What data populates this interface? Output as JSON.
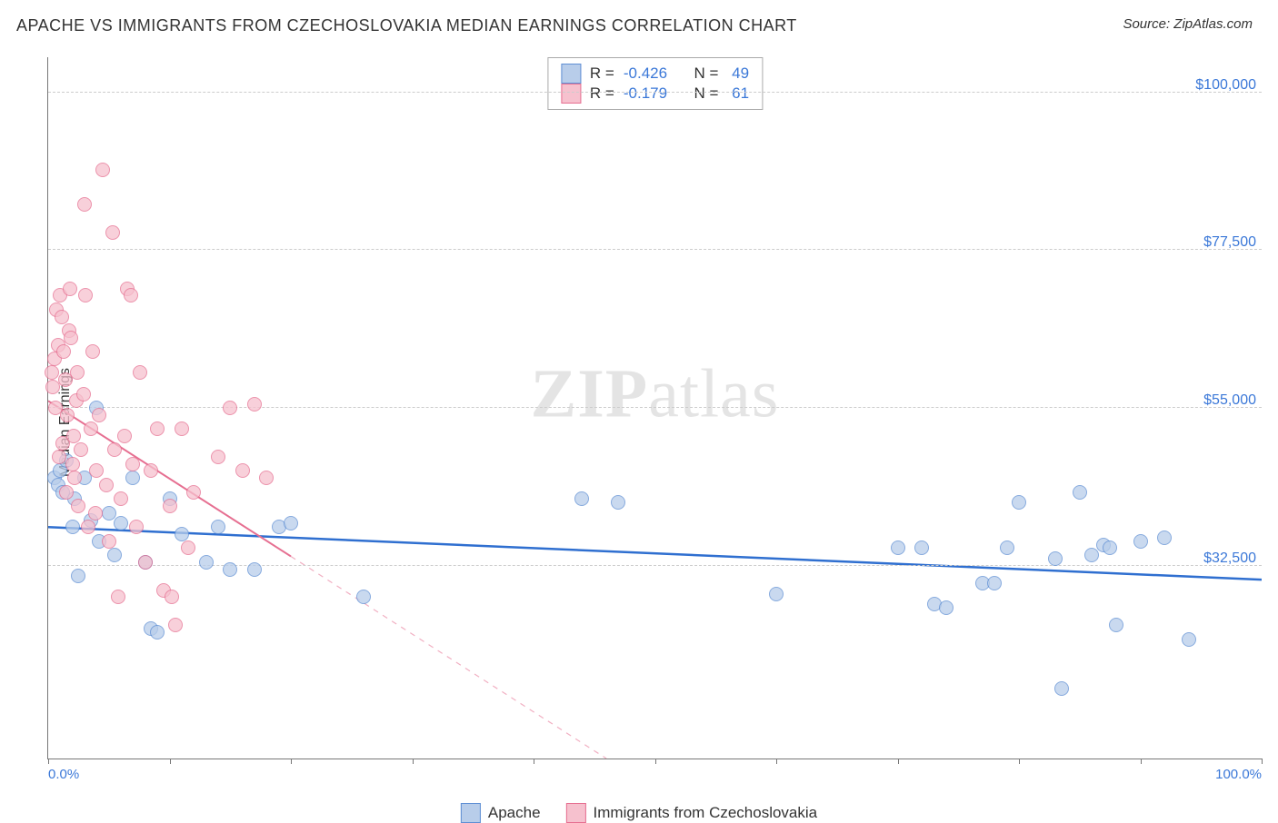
{
  "title": "APACHE VS IMMIGRANTS FROM CZECHOSLOVAKIA MEDIAN EARNINGS CORRELATION CHART",
  "source": "Source: ZipAtlas.com",
  "ylabel": "Median Earnings",
  "watermark": {
    "bold": "ZIP",
    "rest": "atlas"
  },
  "chart": {
    "type": "scatter",
    "xlim": [
      0,
      100
    ],
    "ylim": [
      5000,
      105000
    ],
    "x_tick_positions": [
      0,
      10,
      20,
      30,
      40,
      50,
      60,
      70,
      80,
      90,
      100
    ],
    "x_tick_labels": {
      "0": "0.0%",
      "100": "100.0%"
    },
    "y_gridlines": [
      32500,
      55000,
      77500,
      100000
    ],
    "y_tick_labels": [
      "$32,500",
      "$55,000",
      "$77,500",
      "$100,000"
    ],
    "grid_color": "#cccccc",
    "axis_color": "#777777",
    "tick_label_color": "#3b78d8",
    "background_color": "#ffffff",
    "point_radius": 8,
    "series": [
      {
        "name": "Apache",
        "fill": "#b8cdea",
        "stroke": "#5f8fd4",
        "R": "-0.426",
        "N": "49",
        "trend": {
          "x1": 0,
          "y1": 38000,
          "x2": 100,
          "y2": 30500,
          "solid_to_x": 100,
          "color": "#2f6fd0",
          "width": 2.5
        },
        "points": [
          [
            0.5,
            45000
          ],
          [
            0.8,
            44000
          ],
          [
            1.0,
            46000
          ],
          [
            1.2,
            43000
          ],
          [
            1.5,
            47500
          ],
          [
            2.0,
            38000
          ],
          [
            2.2,
            42000
          ],
          [
            2.5,
            31000
          ],
          [
            3.0,
            45000
          ],
          [
            3.5,
            39000
          ],
          [
            4.0,
            55000
          ],
          [
            4.2,
            36000
          ],
          [
            5.0,
            40000
          ],
          [
            5.5,
            34000
          ],
          [
            6.0,
            38500
          ],
          [
            7.0,
            45000
          ],
          [
            8.0,
            33000
          ],
          [
            8.5,
            23500
          ],
          [
            9.0,
            23000
          ],
          [
            10.0,
            42000
          ],
          [
            11.0,
            37000
          ],
          [
            13.0,
            33000
          ],
          [
            14.0,
            38000
          ],
          [
            15.0,
            32000
          ],
          [
            17.0,
            32000
          ],
          [
            19.0,
            38000
          ],
          [
            20.0,
            38500
          ],
          [
            26.0,
            28000
          ],
          [
            44.0,
            42000
          ],
          [
            47.0,
            41500
          ],
          [
            60.0,
            28500
          ],
          [
            70.0,
            35000
          ],
          [
            72.0,
            35000
          ],
          [
            73.0,
            27000
          ],
          [
            74.0,
            26500
          ],
          [
            77.0,
            30000
          ],
          [
            78.0,
            30000
          ],
          [
            79.0,
            35000
          ],
          [
            80.0,
            41500
          ],
          [
            83.0,
            33500
          ],
          [
            83.5,
            15000
          ],
          [
            85.0,
            43000
          ],
          [
            86.0,
            34000
          ],
          [
            87.0,
            35500
          ],
          [
            87.5,
            35000
          ],
          [
            88.0,
            24000
          ],
          [
            90.0,
            36000
          ],
          [
            92.0,
            36500
          ],
          [
            94.0,
            22000
          ]
        ]
      },
      {
        "name": "Immigrants from Czechoslovakia",
        "fill": "#f6c1ce",
        "stroke": "#e66f91",
        "R": "-0.179",
        "N": "61",
        "trend": {
          "x1": 0,
          "y1": 56000,
          "x2": 46,
          "y2": 5000,
          "solid_to_x": 20,
          "color": "#e66f91",
          "width": 2
        },
        "points": [
          [
            0.3,
            60000
          ],
          [
            0.4,
            58000
          ],
          [
            0.5,
            62000
          ],
          [
            0.6,
            55000
          ],
          [
            0.7,
            69000
          ],
          [
            0.8,
            64000
          ],
          [
            0.9,
            48000
          ],
          [
            1.0,
            71000
          ],
          [
            1.1,
            68000
          ],
          [
            1.2,
            50000
          ],
          [
            1.3,
            63000
          ],
          [
            1.4,
            59000
          ],
          [
            1.5,
            43000
          ],
          [
            1.6,
            54000
          ],
          [
            1.7,
            66000
          ],
          [
            1.8,
            72000
          ],
          [
            1.9,
            65000
          ],
          [
            2.0,
            47000
          ],
          [
            2.1,
            51000
          ],
          [
            2.2,
            45000
          ],
          [
            2.3,
            56000
          ],
          [
            2.4,
            60000
          ],
          [
            2.5,
            41000
          ],
          [
            2.7,
            49000
          ],
          [
            2.9,
            57000
          ],
          [
            3.0,
            84000
          ],
          [
            3.1,
            71000
          ],
          [
            3.3,
            38000
          ],
          [
            3.5,
            52000
          ],
          [
            3.7,
            63000
          ],
          [
            3.9,
            40000
          ],
          [
            4.0,
            46000
          ],
          [
            4.2,
            54000
          ],
          [
            4.5,
            89000
          ],
          [
            4.8,
            44000
          ],
          [
            5.0,
            36000
          ],
          [
            5.3,
            80000
          ],
          [
            5.5,
            49000
          ],
          [
            5.8,
            28000
          ],
          [
            6.0,
            42000
          ],
          [
            6.3,
            51000
          ],
          [
            6.5,
            72000
          ],
          [
            6.8,
            71000
          ],
          [
            7.0,
            47000
          ],
          [
            7.3,
            38000
          ],
          [
            7.6,
            60000
          ],
          [
            8.0,
            33000
          ],
          [
            8.5,
            46000
          ],
          [
            9.0,
            52000
          ],
          [
            9.5,
            29000
          ],
          [
            10.0,
            41000
          ],
          [
            10.5,
            24000
          ],
          [
            11.0,
            52000
          ],
          [
            11.5,
            35000
          ],
          [
            12.0,
            43000
          ],
          [
            14.0,
            48000
          ],
          [
            15.0,
            55000
          ],
          [
            16.0,
            46000
          ],
          [
            17.0,
            55500
          ],
          [
            18.0,
            45000
          ],
          [
            10.2,
            28000
          ]
        ]
      }
    ]
  },
  "stat_legend_labels": {
    "R": "R =",
    "N": "N ="
  },
  "bottom_legend": [
    "Apache",
    "Immigrants from Czechoslovakia"
  ]
}
